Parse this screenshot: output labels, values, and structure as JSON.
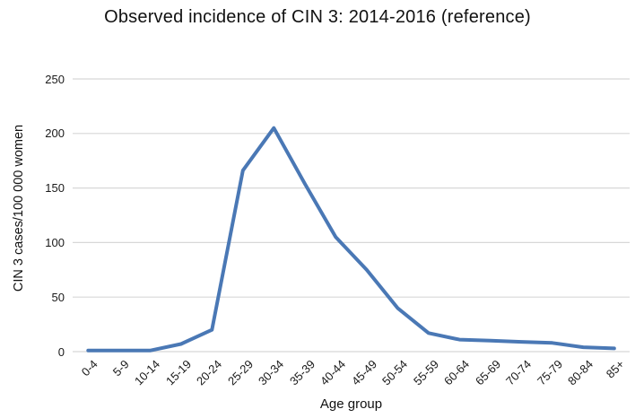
{
  "chart": {
    "title": "Observed incidence of CIN 3: 2014-2016 (reference)",
    "xlabel": "Age group",
    "ylabel": "CIN 3 cases/100 000 women"
  },
  "chart_data": {
    "type": "line",
    "title": "Observed incidence of CIN 3: 2014-2016 (reference)",
    "xlabel": "Age group",
    "ylabel": "CIN 3 cases/100 000 women",
    "categories": [
      "0-4",
      "5-9",
      "10-14",
      "15-19",
      "20-24",
      "25-29",
      "30-34",
      "35-39",
      "40-44",
      "45-49",
      "50-54",
      "55-59",
      "60-64",
      "65-69",
      "70-74",
      "75-79",
      "80-84",
      "85+"
    ],
    "values": [
      1,
      1,
      1,
      7,
      20,
      166,
      205,
      154,
      105,
      75,
      40,
      17,
      11,
      10,
      9,
      8,
      4,
      3
    ],
    "ylim": [
      0,
      250
    ],
    "yticks": [
      0,
      50,
      100,
      150,
      200,
      250
    ],
    "grid": true,
    "legend": false,
    "line_color": "#4a78b5",
    "grid_color": "#d7d7d7",
    "tick_label_rotation_deg": 45
  }
}
